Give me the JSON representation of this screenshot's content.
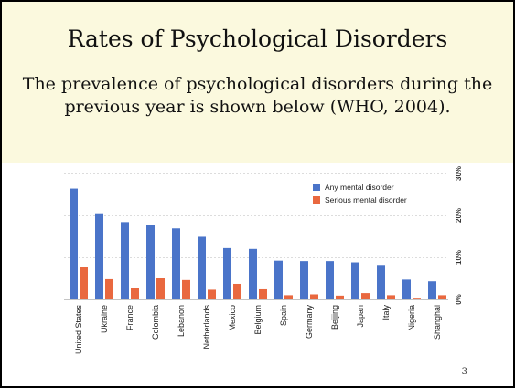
{
  "slide": {
    "title": "Rates of Psychological Disorders",
    "subtitle": "The prevalence of psychological disorders during the previous year is shown below (WHO, 2004).",
    "page_number": "3"
  },
  "colors": {
    "any": "#4a74c9",
    "serious": "#e9683f",
    "grid": "#b8b8b8"
  },
  "chart_data": {
    "type": "bar",
    "categories": [
      "United States",
      "Ukraine",
      "France",
      "Colombia",
      "Lebanon",
      "Netherlands",
      "Mexico",
      "Belgium",
      "Spain",
      "Germany",
      "Beijing",
      "Japan",
      "Italy",
      "Nigeria",
      "Shanghai"
    ],
    "series": [
      {
        "name": "Any mental disorder",
        "values": [
          26.4,
          20.5,
          18.4,
          17.8,
          16.9,
          14.9,
          12.2,
          12.0,
          9.2,
          9.1,
          9.1,
          8.8,
          8.2,
          4.7,
          4.3
        ]
      },
      {
        "name": "Serious mental disorder",
        "values": [
          7.7,
          4.8,
          2.7,
          5.2,
          4.6,
          2.3,
          3.7,
          2.4,
          1.0,
          1.2,
          0.9,
          1.5,
          1.0,
          0.4,
          1.0
        ]
      }
    ],
    "ylim": [
      0,
      30
    ],
    "yticks": [
      "0%",
      "10%",
      "20%",
      "30%"
    ],
    "legend": "top-right",
    "grid": true
  }
}
